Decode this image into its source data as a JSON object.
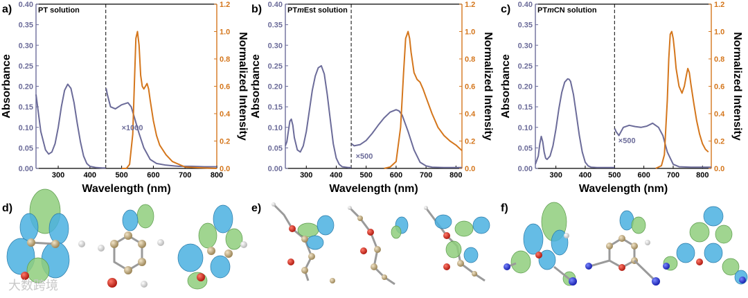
{
  "colors": {
    "absorbance": "#6b6b99",
    "emission": "#d4761c",
    "axis": "#000000"
  },
  "panel_labels": [
    "a)",
    "b)",
    "c)",
    "d)",
    "e)",
    "f)"
  ],
  "watermark": "大数跨境",
  "chart_data": [
    {
      "type": "line",
      "title": "PT solution",
      "title_parts": [
        {
          "text": "PT solution",
          "italic": false
        }
      ],
      "xlabel": "Wavelength (nm)",
      "ylabel_left": "Absorbance",
      "ylabel_right": "Normalized Intensity",
      "xlim": [
        230,
        800
      ],
      "ylim_left": [
        0,
        0.4
      ],
      "ylim_right": [
        0,
        1.2
      ],
      "xticks": [
        300,
        400,
        500,
        600,
        700,
        800
      ],
      "yticks_left": [
        0.0,
        0.05,
        0.1,
        0.15,
        0.2,
        0.25,
        0.3,
        0.35,
        0.4
      ],
      "yticks_right": [
        0.0,
        0.2,
        0.4,
        0.6,
        0.8,
        1.0,
        1.2
      ],
      "divider_x": 450,
      "multiplier_label": "×1000",
      "multiplier_at": [
        500,
        0.1
      ],
      "series": [
        {
          "axis": "left",
          "color_key": "absorbance",
          "x": [
            230,
            235,
            245,
            260,
            270,
            280,
            290,
            300,
            310,
            320,
            330,
            340,
            350,
            360,
            370,
            380,
            390,
            400,
            420,
            440,
            450
          ],
          "y": [
            0.18,
            0.15,
            0.09,
            0.045,
            0.035,
            0.04,
            0.06,
            0.1,
            0.15,
            0.19,
            0.205,
            0.195,
            0.16,
            0.11,
            0.065,
            0.03,
            0.012,
            0.005,
            0.002,
            0.001,
            0.001
          ]
        },
        {
          "axis": "left",
          "color_key": "absorbance",
          "x": [
            451,
            455,
            465,
            480,
            500,
            520,
            530,
            540,
            555,
            570,
            590,
            610,
            640,
            680,
            720,
            760,
            800
          ],
          "y": [
            0.195,
            0.18,
            0.15,
            0.145,
            0.155,
            0.16,
            0.15,
            0.125,
            0.085,
            0.05,
            0.022,
            0.012,
            0.008,
            0.005,
            0.005,
            0.004,
            0.004
          ]
        },
        {
          "axis": "right",
          "color_key": "emission",
          "x": [
            500,
            515,
            525,
            535,
            540,
            545,
            550,
            555,
            560,
            565,
            570,
            575,
            580,
            585,
            590,
            600,
            610,
            620,
            640,
            660,
            680,
            700,
            740,
            800
          ],
          "y": [
            0.0,
            0.0,
            0.03,
            0.25,
            0.6,
            0.95,
            1.0,
            0.9,
            0.68,
            0.6,
            0.58,
            0.6,
            0.62,
            0.58,
            0.5,
            0.35,
            0.24,
            0.17,
            0.1,
            0.05,
            0.03,
            0.01,
            0.005,
            0.0
          ]
        }
      ]
    },
    {
      "type": "line",
      "title": "PTmEst solution",
      "title_parts": [
        {
          "text": "PT",
          "italic": false
        },
        {
          "text": "m",
          "italic": true
        },
        {
          "text": "Est solution",
          "italic": false
        }
      ],
      "xlabel": "Wavelength (nm)",
      "ylabel_left": "Absorbance",
      "ylabel_right": "Normalized Intensity",
      "xlim": [
        230,
        820
      ],
      "ylim_left": [
        0,
        0.4
      ],
      "ylim_right": [
        0,
        1.2
      ],
      "xticks": [
        300,
        400,
        500,
        600,
        700,
        800
      ],
      "yticks_left": [
        0.0,
        0.05,
        0.1,
        0.15,
        0.2,
        0.25,
        0.3,
        0.35,
        0.4
      ],
      "yticks_right": [
        0.0,
        0.2,
        0.4,
        0.6,
        0.8,
        1.0,
        1.2
      ],
      "divider_x": 450,
      "multiplier_label": "×500",
      "multiplier_at": [
        465,
        0.03
      ],
      "series": [
        {
          "axis": "left",
          "color_key": "absorbance",
          "x": [
            230,
            235,
            240,
            245,
            250,
            255,
            260,
            270,
            280,
            290,
            300,
            310,
            320,
            330,
            340,
            350,
            360,
            370,
            380,
            390,
            400,
            410,
            420,
            440,
            450
          ],
          "y": [
            0.055,
            0.065,
            0.09,
            0.115,
            0.12,
            0.105,
            0.075,
            0.045,
            0.04,
            0.055,
            0.09,
            0.14,
            0.19,
            0.225,
            0.245,
            0.25,
            0.23,
            0.18,
            0.12,
            0.06,
            0.025,
            0.01,
            0.004,
            0.002,
            0.002
          ]
        },
        {
          "axis": "left",
          "color_key": "absorbance",
          "x": [
            451,
            460,
            480,
            500,
            520,
            540,
            560,
            580,
            600,
            610,
            620,
            640,
            660,
            680,
            700,
            720,
            760,
            800,
            820
          ],
          "y": [
            0.06,
            0.055,
            0.058,
            0.068,
            0.085,
            0.105,
            0.123,
            0.137,
            0.143,
            0.14,
            0.13,
            0.09,
            0.045,
            0.015,
            0.006,
            0.003,
            0.002,
            0.002,
            0.002
          ]
        },
        {
          "axis": "right",
          "color_key": "emission",
          "x": [
            560,
            580,
            600,
            615,
            625,
            632,
            640,
            645,
            650,
            660,
            670,
            680,
            690,
            700,
            720,
            740,
            760,
            780,
            800,
            820
          ],
          "y": [
            0.0,
            0.01,
            0.05,
            0.3,
            0.7,
            0.95,
            1.0,
            0.95,
            0.85,
            0.7,
            0.65,
            0.63,
            0.58,
            0.52,
            0.4,
            0.3,
            0.24,
            0.2,
            0.17,
            0.13
          ]
        }
      ]
    },
    {
      "type": "line",
      "title": "PTmCN solution",
      "title_parts": [
        {
          "text": "PT",
          "italic": false
        },
        {
          "text": "m",
          "italic": true
        },
        {
          "text": "CN solution",
          "italic": false
        }
      ],
      "xlabel": "Wavelength (nm)",
      "ylabel_left": "Absorbance",
      "ylabel_right": "Normalized Intensity",
      "xlim": [
        230,
        830
      ],
      "ylim_left": [
        0,
        0.4
      ],
      "ylim_right": [
        0,
        1.2
      ],
      "xticks": [
        300,
        400,
        500,
        600,
        700,
        800
      ],
      "yticks_left": [
        0.0,
        0.05,
        0.1,
        0.15,
        0.2,
        0.25,
        0.3,
        0.35,
        0.4
      ],
      "yticks_right": [
        0.0,
        0.2,
        0.4,
        0.6,
        0.8,
        1.0,
        1.2
      ],
      "divider_x": 500,
      "multiplier_label": "×500",
      "multiplier_at": [
        513,
        0.068
      ],
      "series": [
        {
          "axis": "left",
          "color_key": "absorbance",
          "x": [
            230,
            240,
            245,
            250,
            255,
            260,
            265,
            270,
            280,
            290,
            300,
            310,
            320,
            330,
            340,
            345,
            350,
            360,
            370,
            380,
            390,
            400,
            410,
            420,
            440,
            460,
            480,
            500
          ],
          "y": [
            0.01,
            0.03,
            0.06,
            0.078,
            0.065,
            0.04,
            0.025,
            0.022,
            0.03,
            0.055,
            0.095,
            0.145,
            0.185,
            0.21,
            0.218,
            0.217,
            0.212,
            0.18,
            0.13,
            0.08,
            0.04,
            0.015,
            0.006,
            0.003,
            0.002,
            0.002,
            0.002,
            0.002
          ]
        },
        {
          "axis": "left",
          "color_key": "absorbance",
          "x": [
            501,
            505,
            515,
            530,
            550,
            570,
            590,
            610,
            630,
            650,
            665,
            680,
            700,
            720,
            760,
            800,
            830
          ],
          "y": [
            0.097,
            0.09,
            0.08,
            0.1,
            0.105,
            0.102,
            0.1,
            0.103,
            0.11,
            0.1,
            0.08,
            0.04,
            0.01,
            0.004,
            0.003,
            0.003,
            0.003
          ]
        },
        {
          "axis": "right",
          "color_key": "emission",
          "x": [
            640,
            660,
            670,
            680,
            685,
            690,
            695,
            700,
            705,
            710,
            720,
            730,
            738,
            745,
            750,
            755,
            760,
            770,
            780,
            790,
            800,
            810,
            820
          ],
          "y": [
            0.0,
            0.02,
            0.1,
            0.5,
            0.8,
            0.98,
            1.0,
            0.95,
            0.85,
            0.73,
            0.6,
            0.55,
            0.6,
            0.68,
            0.73,
            0.7,
            0.62,
            0.48,
            0.35,
            0.25,
            0.18,
            0.14,
            0.12
          ]
        }
      ]
    }
  ]
}
